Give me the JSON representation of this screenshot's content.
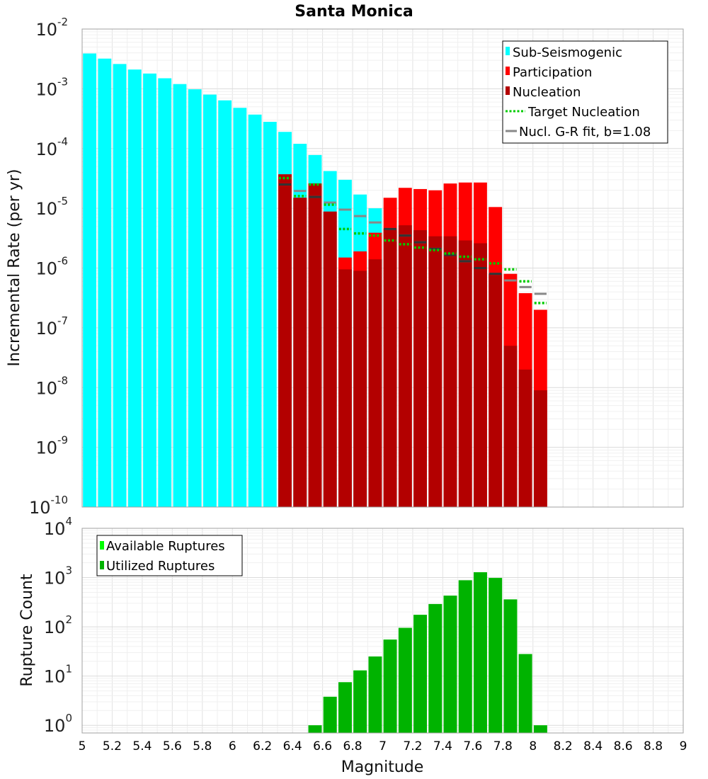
{
  "chart_data": [
    {
      "type": "bar",
      "title": "Santa Monica",
      "ylabel": "Incremental Rate (per yr)",
      "xlabel": "",
      "xlim": [
        5,
        9
      ],
      "ylim": [
        1e-10,
        0.01
      ],
      "yscale": "log",
      "grid": true,
      "legend_position": "top-right",
      "bin_width": 0.1,
      "ytick_base": "10",
      "yticks_exp": [
        -2,
        -3,
        -4,
        -5,
        -6,
        -7,
        -8,
        -9,
        -10
      ],
      "series": [
        {
          "name": "Sub-Seismogenic",
          "color": "#00ffff",
          "style": "bar",
          "x": [
            5.05,
            5.15,
            5.25,
            5.35,
            5.45,
            5.55,
            5.65,
            5.75,
            5.85,
            5.95,
            6.05,
            6.15,
            6.25,
            6.35,
            6.45,
            6.55,
            6.65,
            6.75,
            6.85,
            6.95
          ],
          "values": [
            0.0039,
            0.0032,
            0.0026,
            0.0021,
            0.0018,
            0.0015,
            0.0012,
            0.00098,
            0.0008,
            0.00064,
            0.00048,
            0.00037,
            0.00028,
            0.00019,
            0.00012,
            7.8e-05,
            4.2e-05,
            3e-05,
            1.7e-05,
            1e-05
          ]
        },
        {
          "name": "Participation",
          "color": "#ff0000",
          "style": "bar",
          "x": [
            6.35,
            6.45,
            6.55,
            6.65,
            6.75,
            6.85,
            6.95,
            7.05,
            7.15,
            7.25,
            7.35,
            7.45,
            7.55,
            7.65,
            7.75,
            7.85,
            7.95,
            8.05
          ],
          "values": [
            3.7e-05,
            1.5e-05,
            2.6e-05,
            8.8e-06,
            1.5e-06,
            1.9e-06,
            3.9e-06,
            1.5e-05,
            2.2e-05,
            2.1e-05,
            2e-05,
            2.6e-05,
            2.7e-05,
            2.7e-05,
            1.05e-05,
            8e-07,
            3.8e-07,
            2e-07
          ]
        },
        {
          "name": "Nucleation",
          "color": "#b30000",
          "style": "bar",
          "x": [
            6.35,
            6.45,
            6.55,
            6.65,
            6.75,
            6.85,
            6.95,
            7.05,
            7.15,
            7.25,
            7.35,
            7.45,
            7.55,
            7.65,
            7.75,
            7.85,
            7.95,
            8.05
          ],
          "values": [
            3.7e-05,
            1.5e-05,
            2.6e-05,
            8.8e-06,
            9.5e-07,
            9e-07,
            1.4e-06,
            4.6e-06,
            5.2e-06,
            4.3e-06,
            3.4e-06,
            3.4e-06,
            2.9e-06,
            2.6e-06,
            8e-07,
            5e-08,
            2e-08,
            9e-09
          ]
        },
        {
          "name": "Target Nucleation",
          "color": "#00cc00",
          "style": "dotted-step",
          "x": [
            6.35,
            6.45,
            6.55,
            6.65,
            6.75,
            6.85,
            6.95,
            7.05,
            7.15,
            7.25,
            7.35,
            7.45,
            7.55,
            7.65,
            7.75,
            7.85,
            7.95,
            8.05
          ],
          "values": [
            3.2e-05,
            1.6e-05,
            2.5e-05,
            1.15e-05,
            4.5e-06,
            3.8e-06,
            3.5e-06,
            2.9e-06,
            2.5e-06,
            2.2e-06,
            2e-06,
            1.75e-06,
            1.55e-06,
            1.4e-06,
            1.2e-06,
            9.5e-07,
            6e-07,
            2.6e-07
          ]
        },
        {
          "name": "Nucl. G-R fit, b=1.08",
          "color": "#888888",
          "style": "step",
          "x": [
            6.35,
            6.45,
            6.55,
            6.65,
            6.75,
            6.85,
            6.95,
            7.05,
            7.15,
            7.25,
            7.35,
            7.45,
            7.55,
            7.65,
            7.75,
            7.85,
            7.95,
            8.05
          ],
          "values": [
            2.5e-05,
            1.95e-05,
            1.55e-05,
            1.25e-05,
            9.5e-06,
            7.4e-06,
            5.8e-06,
            4.5e-06,
            3.5e-06,
            2.7e-06,
            2.1e-06,
            1.65e-06,
            1.3e-06,
            1e-06,
            8e-07,
            6.2e-07,
            4.8e-07,
            3.7e-07
          ]
        }
      ]
    },
    {
      "type": "bar",
      "title": "",
      "ylabel": "Rupture Count",
      "xlabel": "Magnitude",
      "xlim": [
        5,
        9
      ],
      "ylim": [
        0.7,
        10000
      ],
      "yscale": "log",
      "grid": true,
      "legend_position": "top-left",
      "bin_width": 0.1,
      "ytick_base": "10",
      "yticks_exp": [
        4,
        3,
        2,
        1,
        0
      ],
      "xtick_labels": [
        "5",
        "5.2",
        "5.4",
        "5.6",
        "5.8",
        "6",
        "6.2",
        "6.4",
        "6.6",
        "6.8",
        "7",
        "7.2",
        "7.4",
        "7.6",
        "7.8",
        "8",
        "8.2",
        "8.4",
        "8.6",
        "8.8",
        "9"
      ],
      "series": [
        {
          "name": "Available Ruptures",
          "color": "#00ff00",
          "style": "bar",
          "x": [
            6.55,
            6.65,
            6.75,
            6.85,
            6.95,
            7.05,
            7.15,
            7.25,
            7.35,
            7.45,
            7.55,
            7.65,
            7.75,
            7.85,
            7.95,
            8.05
          ],
          "values": [
            1,
            3.8,
            7.5,
            13,
            25,
            55,
            95,
            175,
            290,
            430,
            880,
            1280,
            980,
            360,
            28,
            1
          ]
        },
        {
          "name": "Utilized Ruptures",
          "color": "#00b300",
          "style": "bar",
          "x": [
            6.55,
            6.65,
            6.75,
            6.85,
            6.95,
            7.05,
            7.15,
            7.25,
            7.35,
            7.45,
            7.55,
            7.65,
            7.75,
            7.85,
            7.95,
            8.05
          ],
          "values": [
            1,
            3.8,
            7.5,
            13,
            25,
            55,
            95,
            175,
            290,
            430,
            880,
            1280,
            980,
            360,
            28,
            1
          ]
        }
      ]
    }
  ]
}
